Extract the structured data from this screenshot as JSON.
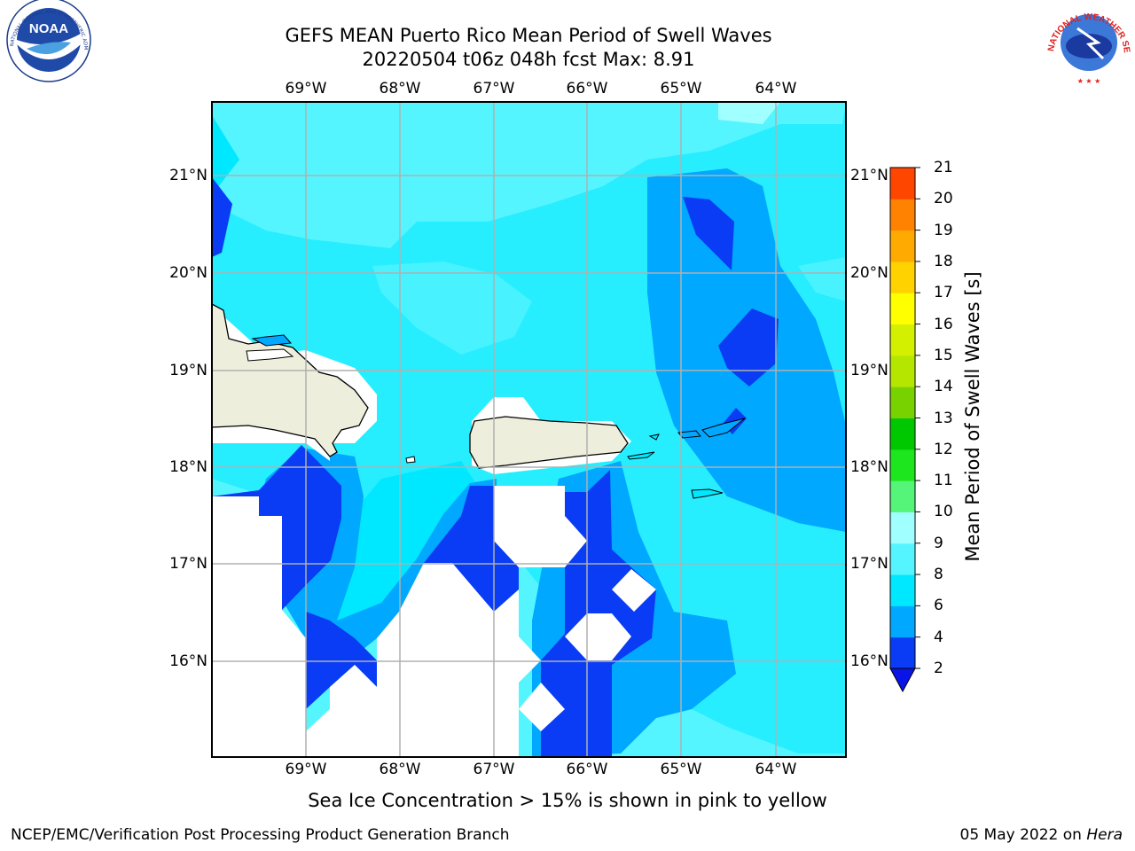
{
  "title_line1": "GEFS MEAN Puerto Rico Mean Period of Swell Waves",
  "title_line2": "20220504 t06z 048h fcst   Max: 8.91",
  "lon_labels": [
    "69°W",
    "68°W",
    "67°W",
    "66°W",
    "65°W",
    "64°W"
  ],
  "lat_labels": [
    "21°N",
    "20°N",
    "19°N",
    "18°N",
    "17°N",
    "16°N"
  ],
  "colorbar": {
    "title": "Mean Period of Swell Waves [s]",
    "ticks": [
      "2",
      "4",
      "6",
      "8",
      "9",
      "10",
      "11",
      "12",
      "13",
      "14",
      "15",
      "16",
      "17",
      "18",
      "19",
      "20",
      "21"
    ],
    "colors": [
      "#0a3cf5",
      "#00a8ff",
      "#00e8ff",
      "#55f5ff",
      "#a0ffff",
      "#55f57a",
      "#1ee61e",
      "#00c800",
      "#78d200",
      "#b4e600",
      "#d2f000",
      "#ffff00",
      "#ffd200",
      "#ffaa00",
      "#ff8200",
      "#ff4600",
      "#ff0000"
    ]
  },
  "caption": "Sea Ice Concentration > 15% is shown in pink to yellow",
  "footer_left": "NCEP/EMC/Verification Post Processing Product Generation Branch",
  "footer_date": "05 May 2022 on ",
  "footer_host": "Hera",
  "logos": {
    "noaa_text": "NOAA",
    "noaa_ring": "NATIONAL OCEANIC AND ATMOSPHERIC ADMINISTRATION · U.S. DEPARTMENT OF COMMERCE",
    "nws_ring": "NATIONAL WEATHER SERVICE"
  }
}
